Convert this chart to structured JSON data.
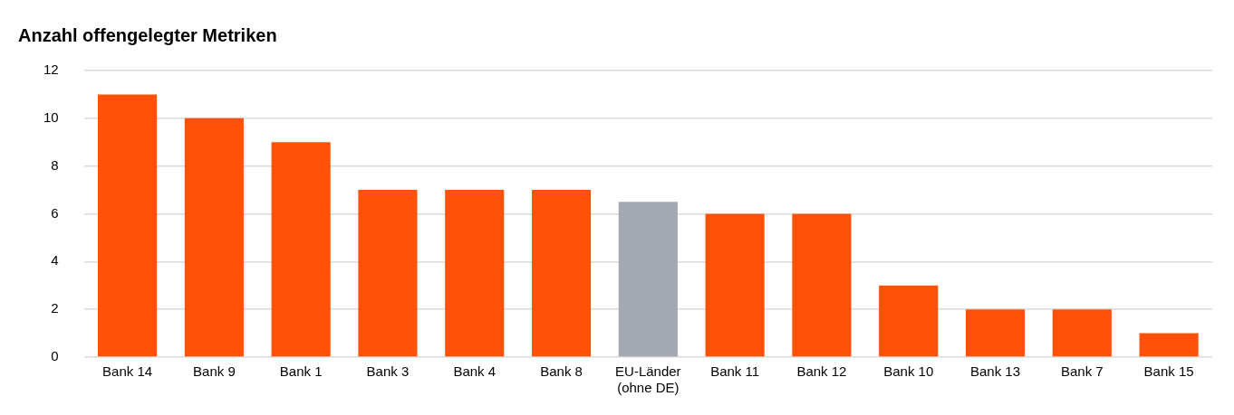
{
  "chart_data": {
    "type": "bar",
    "title": "Anzahl offengelegter Metriken",
    "categories": [
      "Bank 14",
      "Bank 9",
      "Bank 1",
      "Bank 3",
      "Bank 4",
      "Bank 8",
      "EU-Länder (ohne DE)",
      "Bank 11",
      "Bank 12",
      "Bank 10",
      "Bank 13",
      "Bank 7",
      "Bank 15"
    ],
    "values": [
      11,
      10,
      9,
      7,
      7,
      7,
      6.5,
      6,
      6,
      3,
      2,
      2,
      1
    ],
    "colors": [
      "#ff5208",
      "#ff5208",
      "#ff5208",
      "#ff5208",
      "#ff5208",
      "#ff5208",
      "#a3a8b2",
      "#ff5208",
      "#ff5208",
      "#ff5208",
      "#ff5208",
      "#ff5208",
      "#ff5208"
    ],
    "ylim": [
      0,
      12
    ],
    "yticks": [
      0,
      2,
      4,
      6,
      8,
      10,
      12
    ],
    "grid": "y",
    "legend": false
  }
}
